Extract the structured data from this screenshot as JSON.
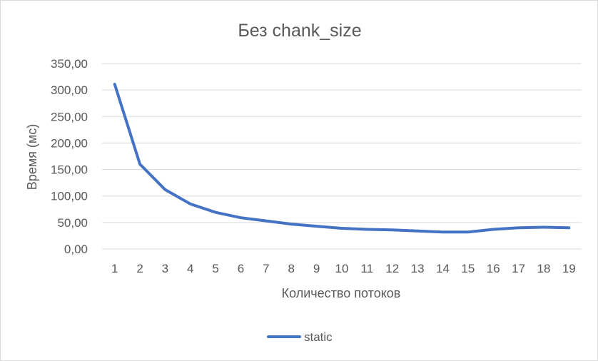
{
  "chart_data": {
    "type": "line",
    "title": "Без chank_size",
    "xlabel": "Количество потоков",
    "ylabel": "Время (мс)",
    "categories": [
      "1",
      "2",
      "3",
      "4",
      "5",
      "6",
      "7",
      "8",
      "9",
      "10",
      "11",
      "12",
      "13",
      "14",
      "15",
      "16",
      "17",
      "18",
      "19"
    ],
    "ylim": [
      0,
      350
    ],
    "yticks": [
      "0,00",
      "50,00",
      "100,00",
      "150,00",
      "200,00",
      "250,00",
      "300,00",
      "350,00"
    ],
    "grid": true,
    "legend_position": "bottom",
    "series": [
      {
        "name": "static",
        "color": "#4472c4",
        "values": [
          311,
          160,
          112,
          85,
          69,
          59,
          53,
          47,
          43,
          39,
          37,
          36,
          34,
          32,
          32,
          37,
          40,
          41,
          40
        ]
      }
    ]
  }
}
